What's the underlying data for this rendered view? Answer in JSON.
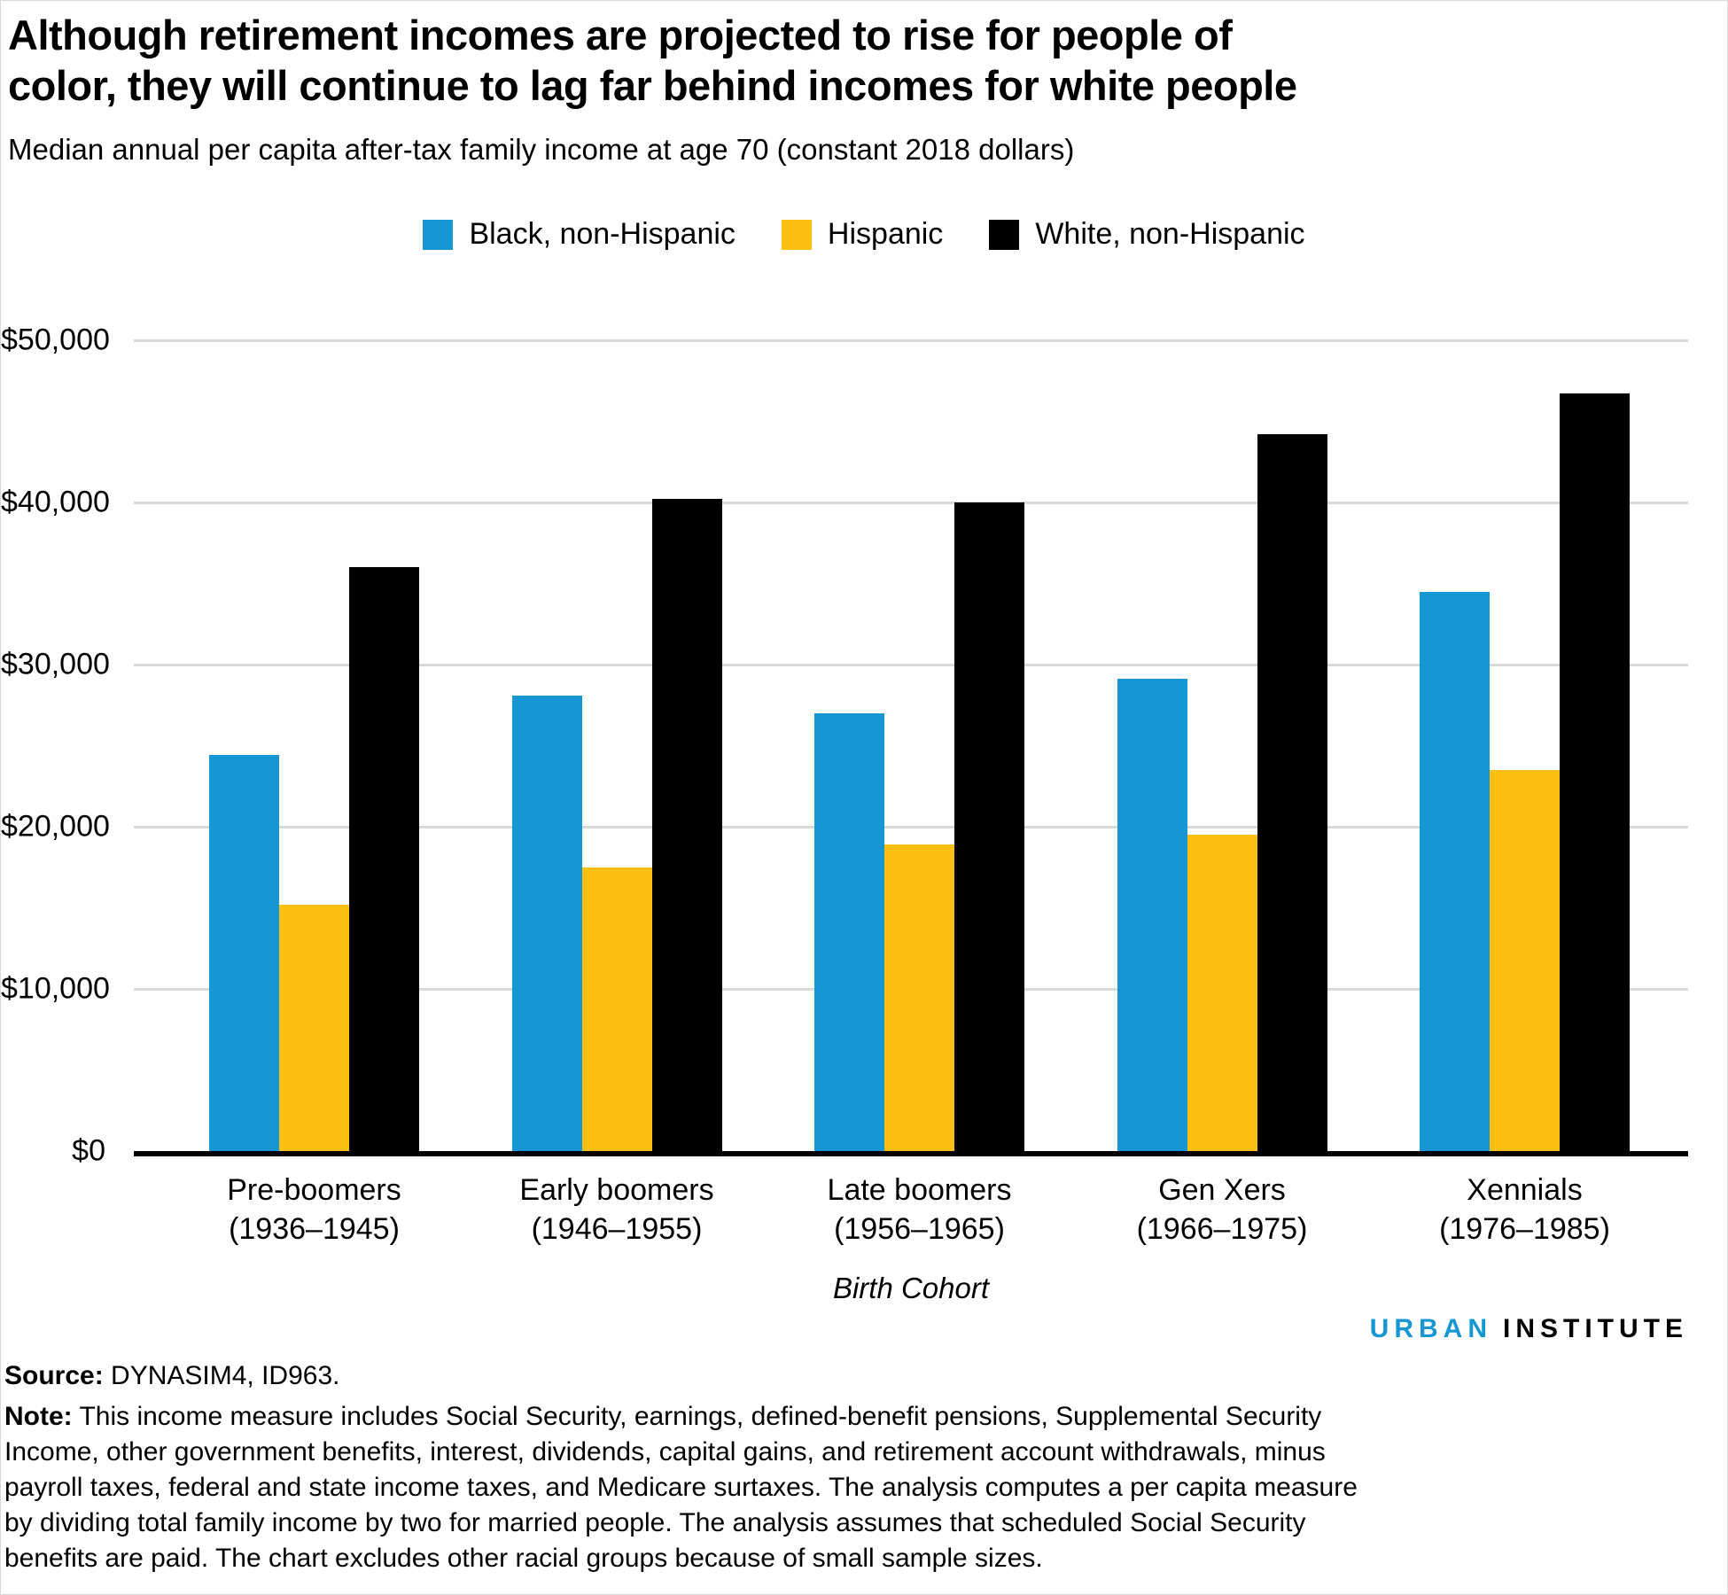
{
  "chart_data": {
    "type": "bar",
    "title": "Although retirement incomes are projected to rise for people of color, they will continue to lag far behind incomes for white people",
    "subtitle": "Median annual per capita after-tax family income at age 70 (constant 2018 dollars)",
    "categories": [
      {
        "label": "Pre-boomers",
        "range": "(1936–1945)"
      },
      {
        "label": "Early boomers",
        "range": "(1946–1955)"
      },
      {
        "label": "Late boomers",
        "range": "(1956–1965)"
      },
      {
        "label": "Gen Xers",
        "range": "(1966–1975)"
      },
      {
        "label": "Xennials",
        "range": "(1976–1985)"
      }
    ],
    "series": [
      {
        "name": "Black, non-Hispanic",
        "color": "#1696d2",
        "values": [
          24400,
          28100,
          27000,
          29100,
          34500
        ]
      },
      {
        "name": "Hispanic",
        "color": "#fdbf11",
        "values": [
          15200,
          17500,
          18900,
          19500,
          23500
        ]
      },
      {
        "name": "White, non-Hispanic",
        "color": "#000000",
        "values": [
          36000,
          40200,
          40000,
          44200,
          46700
        ]
      }
    ],
    "ylim": [
      0,
      50000
    ],
    "y_ticks": [
      {
        "value": 50000,
        "label": "$50,000"
      },
      {
        "value": 40000,
        "label": "$40,000"
      },
      {
        "value": 30000,
        "label": "$30,000"
      },
      {
        "value": 20000,
        "label": "$20,000"
      },
      {
        "value": 10000,
        "label": "$10,000"
      },
      {
        "value": 0,
        "label": "$0"
      }
    ],
    "xlabel": "Birth Cohort",
    "grid": true,
    "legend_position": "top",
    "colors": {
      "accent_blue": "#1696d2",
      "accent_yellow": "#fdbf11",
      "bar_black": "#000000",
      "gridline": "#d9d9d9"
    }
  },
  "footer": {
    "logo": {
      "part1": "URBAN",
      "part2": "INSTITUTE"
    },
    "source_label": "Source:",
    "source_text": " DYNASIM4, ID963.",
    "note_label": "Note:",
    "note_text": " This income measure includes Social Security, earnings, defined-benefit pensions, Supplemental Security Income, other government benefits, interest, dividends, capital gains, and retirement account withdrawals, minus payroll taxes, federal and state income taxes, and Medicare surtaxes. The analysis computes a per capita measure by dividing total family income by two for married people. The analysis assumes that scheduled Social Security benefits are paid. The chart excludes other racial groups because of small sample sizes."
  }
}
